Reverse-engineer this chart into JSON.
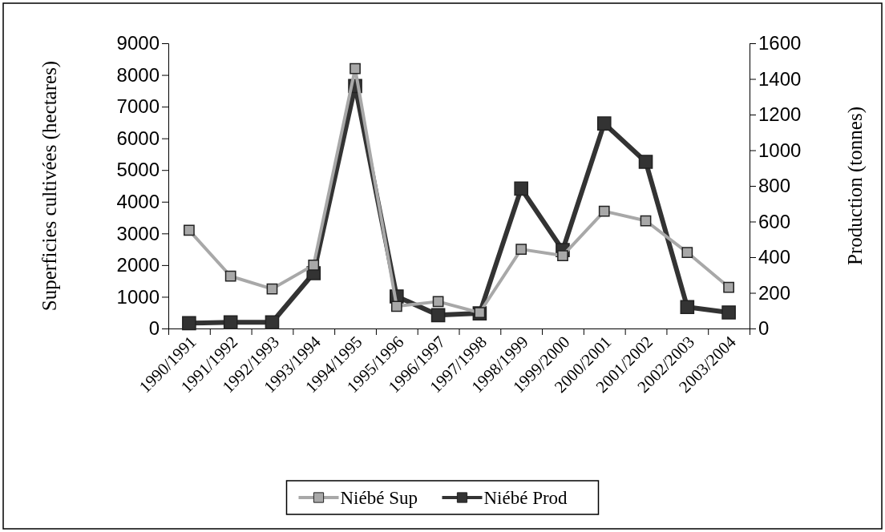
{
  "chart_data": {
    "type": "line",
    "categories": [
      "1990/1991",
      "1991/1992",
      "1992/1993",
      "1993/1994",
      "1994/1995",
      "1995/1996",
      "1996/1997",
      "1997/1998",
      "1998/1999",
      "1999/2000",
      "2000/2001",
      "2001/2002",
      "2002/2003",
      "2003/2004"
    ],
    "ylabel": "Superficies cultivées (hectares)",
    "y2label": "Production (tonnes)",
    "ylim": [
      0,
      9000
    ],
    "yticks": [
      0,
      1000,
      2000,
      3000,
      4000,
      5000,
      6000,
      7000,
      8000,
      9000
    ],
    "y2lim": [
      0,
      1600
    ],
    "y2ticks": [
      0,
      200,
      400,
      600,
      800,
      1000,
      1200,
      1400,
      1600
    ],
    "marker": "square",
    "legend": "bottom",
    "grid": false,
    "series": [
      {
        "name": "Niébé Sup",
        "color": "#a8a8a8",
        "values": [
          3100,
          1650,
          1250,
          2000,
          8200,
          700,
          850,
          500,
          2500,
          2300,
          3700,
          3400,
          2400,
          1300
        ]
      },
      {
        "name": "Niébé Prod",
        "color": "#333333",
        "axis": "y2",
        "values": [
          30,
          35,
          35,
          310,
          1360,
          180,
          75,
          85,
          785,
          440,
          1150,
          935,
          120,
          90
        ]
      }
    ]
  }
}
